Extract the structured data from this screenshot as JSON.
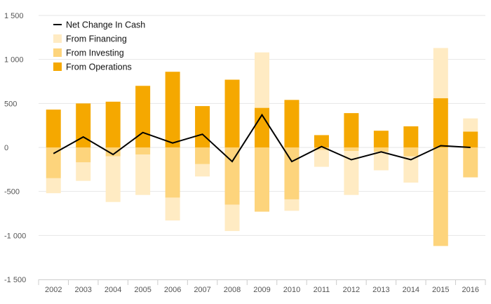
{
  "chart_data": {
    "type": "bar",
    "stacked": true,
    "categories": [
      "2002",
      "2003",
      "2004",
      "2005",
      "2006",
      "2007",
      "2008",
      "2009",
      "2010",
      "2011",
      "2012",
      "2013",
      "2014",
      "2015",
      "2016"
    ],
    "ylim": [
      -1500,
      1500
    ],
    "yticks": [
      1500,
      1000,
      500,
      0,
      -500,
      -1000,
      -1500
    ],
    "ytick_labels": [
      "1 500",
      "1 000",
      "500",
      "0",
      "-500",
      "-1 000",
      "-1 500"
    ],
    "grid": true,
    "legend_position": "top-left",
    "series": [
      {
        "name": "From Operations",
        "type": "bar",
        "color": "#F5A800",
        "values": [
          430,
          500,
          520,
          700,
          860,
          470,
          770,
          450,
          540,
          140,
          390,
          190,
          240,
          560,
          180
        ]
      },
      {
        "name": "From Investing",
        "type": "bar",
        "color": "#FDD47C",
        "values": [
          -350,
          -170,
          -100,
          -80,
          -570,
          -190,
          -650,
          -730,
          -590,
          -30,
          -40,
          -50,
          -100,
          -1120,
          -340
        ]
      },
      {
        "name": "From Financing",
        "type": "bar",
        "color": "#FFEBC3",
        "values": [
          -170,
          -210,
          -520,
          -460,
          -260,
          -140,
          -300,
          630,
          -130,
          -190,
          -500,
          -210,
          -300,
          570,
          150
        ]
      },
      {
        "name": "Net Change In Cash",
        "type": "line",
        "color": "#000000",
        "values": [
          -70,
          120,
          -80,
          170,
          50,
          150,
          -160,
          370,
          -160,
          10,
          -140,
          -50,
          -140,
          20,
          0
        ]
      }
    ]
  }
}
